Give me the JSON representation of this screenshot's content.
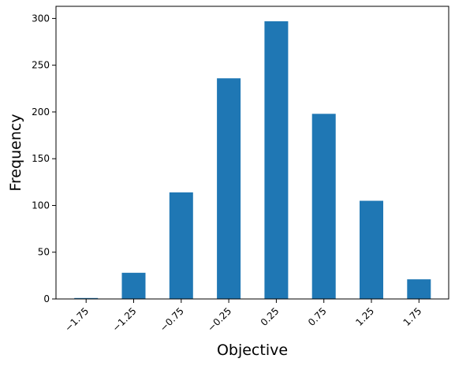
{
  "chart_data": {
    "type": "bar",
    "title": "",
    "xlabel": "Objective",
    "ylabel": "Frequency",
    "categories": [
      "−1.75",
      "−1.25",
      "−0.75",
      "−0.25",
      "0.25",
      "0.75",
      "1.25",
      "1.75"
    ],
    "values": [
      1,
      28,
      114,
      236,
      297,
      198,
      105,
      21
    ],
    "ylim": [
      0,
      313
    ],
    "yticks": [
      0,
      50,
      100,
      150,
      200,
      250,
      300
    ],
    "bar_color": "#1f77b4",
    "grid": false,
    "legend": "none"
  }
}
